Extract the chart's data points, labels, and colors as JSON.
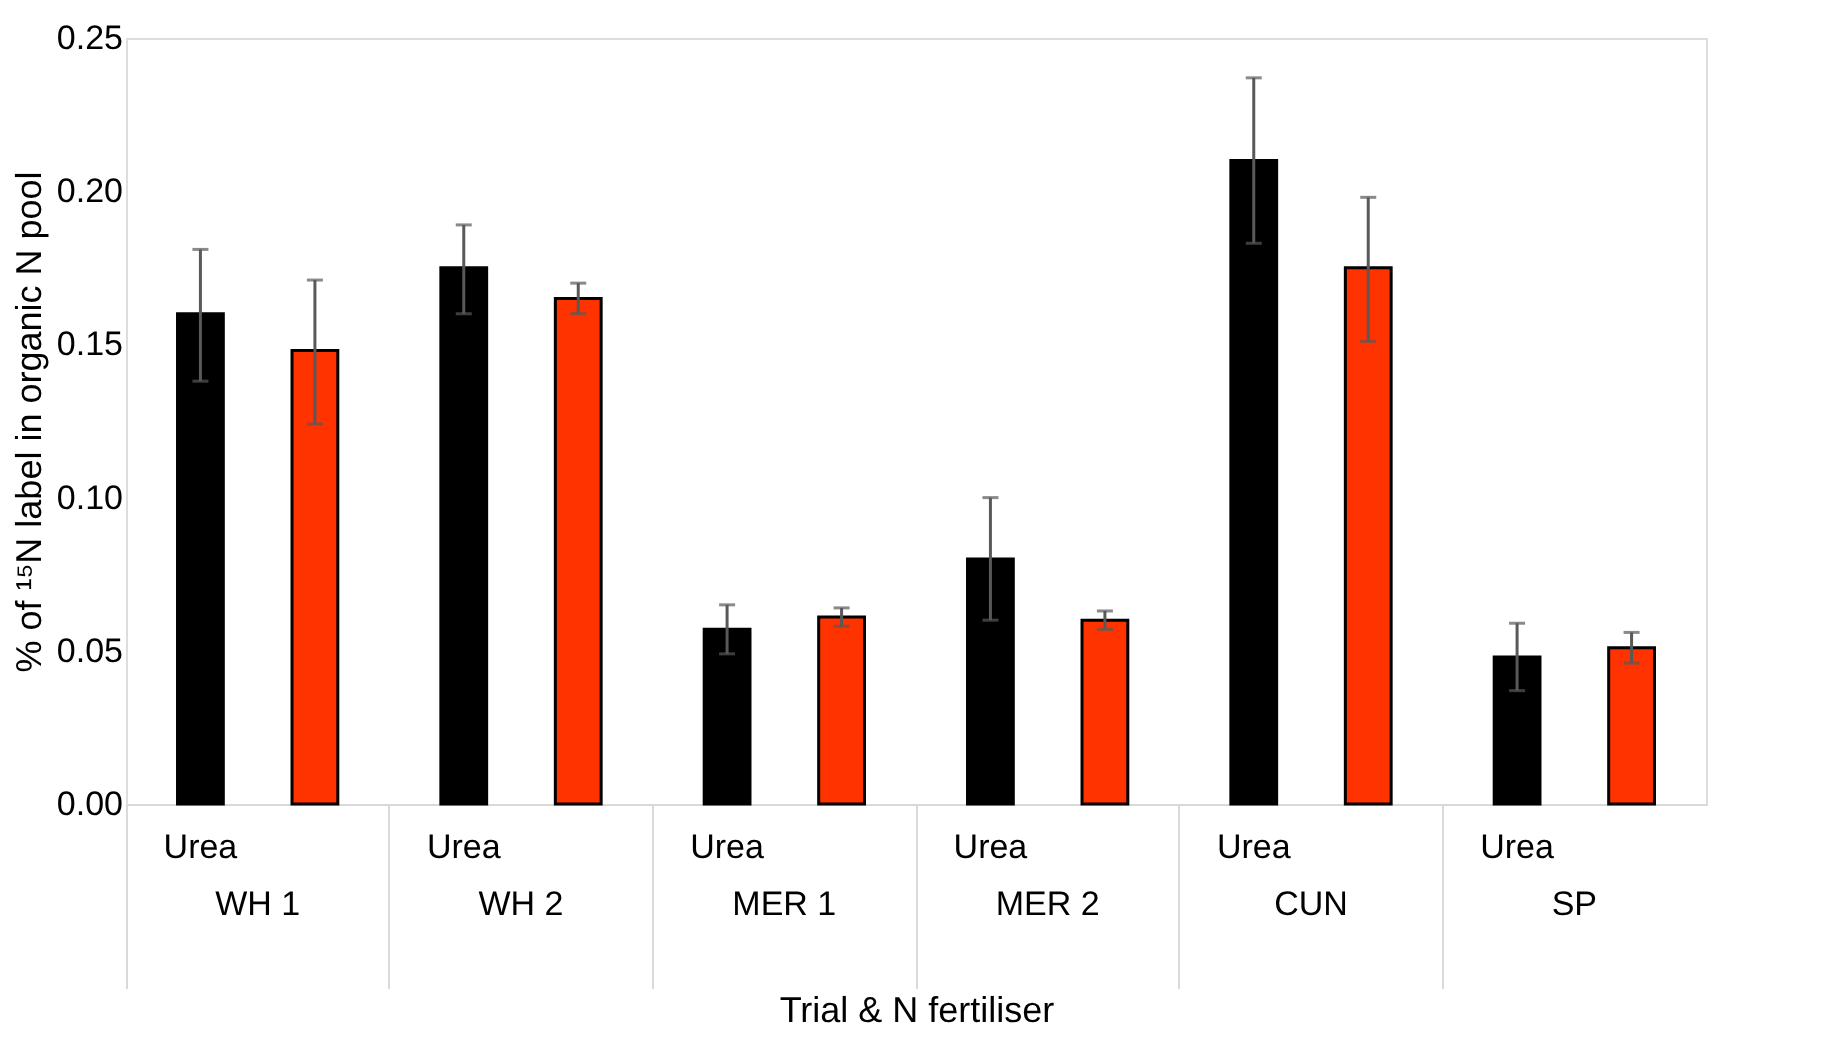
{
  "chart_data": {
    "type": "bar",
    "xlabel": "Trial & N fertiliser",
    "ylabel": "% of ¹⁵N label in organic N pool",
    "categories": [
      "WH 1",
      "WH 2",
      "MER 1",
      "MER 2",
      "CUN",
      "SP"
    ],
    "series": [
      {
        "name": "Urea",
        "color": "#000000",
        "values": [
          0.16,
          0.175,
          0.057,
          0.08,
          0.21,
          0.048
        ],
        "errors": [
          [
            0.138,
            0.181
          ],
          [
            0.16,
            0.189
          ],
          [
            0.049,
            0.065
          ],
          [
            0.06,
            0.1
          ],
          [
            0.183,
            0.237
          ],
          [
            0.037,
            0.059
          ]
        ]
      },
      {
        "color": "#ff3300",
        "values": [
          0.148,
          0.165,
          0.061,
          0.06,
          0.175,
          0.051
        ],
        "errors": [
          [
            0.124,
            0.171
          ],
          [
            0.16,
            0.17
          ],
          [
            0.058,
            0.064
          ],
          [
            0.057,
            0.063
          ],
          [
            0.151,
            0.198
          ],
          [
            0.046,
            0.056
          ]
        ]
      }
    ],
    "ylim": [
      0,
      0.25
    ],
    "yticks": [
      {
        "value": 0,
        "label": "0.00"
      },
      {
        "value": 0.05,
        "label": "0.05"
      },
      {
        "value": 0.1,
        "label": "0.10"
      },
      {
        "value": 0.15,
        "label": "0.15"
      },
      {
        "value": 0.2,
        "label": "0.20"
      },
      {
        "value": 0.25,
        "label": "0.25"
      }
    ],
    "grid": false,
    "legend": false
  }
}
